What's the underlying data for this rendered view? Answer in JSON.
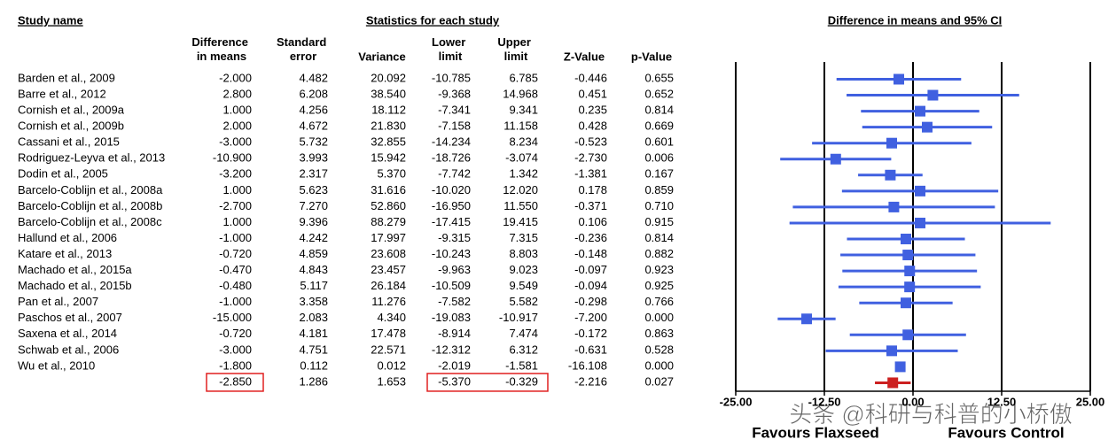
{
  "chart_data": {
    "type": "forest",
    "study_header": "Study name",
    "stats_header": "Statistics for each study",
    "title": "Difference in means and 95% CI",
    "categories": [
      "Barden et al., 2009",
      "Barre et al., 2012",
      "Cornish et al., 2009a",
      "Cornish et al., 2009b",
      "Cassani et al., 2015",
      "Rodriguez-Leyva et al., 2013",
      "Dodin et al., 2005",
      "Barcelo-Coblijn et al., 2008a",
      "Barcelo-Coblijn et al., 2008b",
      "Barcelo-Coblijn et al., 2008c",
      "Hallund et al., 2006",
      "Katare et al., 2013",
      "Machado et al., 2015a",
      "Machado et al., 2015b",
      "Pan et al., 2007",
      "Paschos et al., 2007",
      "Saxena et al., 2014",
      "Schwab et al., 2006",
      "Wu et al., 2010",
      null
    ],
    "columns": [
      {
        "name": "Difference in means",
        "values": [
          -2,
          2.8,
          1,
          2,
          -3,
          -10.9,
          -3.2,
          1,
          -2.7,
          1,
          -1,
          -0.72,
          -0.47,
          -0.48,
          -1,
          -15,
          -0.72,
          -3,
          -1.8,
          -2.85
        ],
        "value_labels": [
          "-2.000",
          "2.800",
          "1.000",
          "2.000",
          "-3.000",
          "-10.900",
          "-3.200",
          "1.000",
          "-2.700",
          "1.000",
          "-1.000",
          "-0.720",
          "-0.470",
          "-0.480",
          "-1.000",
          "-15.000",
          "-0.720",
          "-3.000",
          "-1.800",
          "-2.850"
        ]
      },
      {
        "name": "Standard error",
        "values": [
          4.482,
          6.208,
          4.256,
          4.672,
          5.732,
          3.993,
          2.317,
          5.623,
          7.27,
          9.396,
          4.242,
          4.859,
          4.843,
          5.117,
          3.358,
          2.083,
          4.181,
          4.751,
          0.112,
          1.286
        ],
        "value_labels": [
          "4.482",
          "6.208",
          "4.256",
          "4.672",
          "5.732",
          "3.993",
          "2.317",
          "5.623",
          "7.270",
          "9.396",
          "4.242",
          "4.859",
          "4.843",
          "5.117",
          "3.358",
          "2.083",
          "4.181",
          "4.751",
          "0.112",
          "1.286"
        ]
      },
      {
        "name": "Variance",
        "values": [
          20.092,
          38.54,
          18.112,
          21.83,
          32.855,
          15.942,
          5.37,
          31.616,
          52.86,
          88.279,
          17.997,
          23.608,
          23.457,
          26.184,
          11.276,
          4.34,
          17.478,
          22.571,
          0.012,
          1.653
        ],
        "value_labels": [
          "20.092",
          "38.540",
          "18.112",
          "21.830",
          "32.855",
          "15.942",
          "5.370",
          "31.616",
          "52.860",
          "88.279",
          "17.997",
          "23.608",
          "23.457",
          "26.184",
          "11.276",
          "4.340",
          "17.478",
          "22.571",
          "0.012",
          "1.653"
        ]
      },
      {
        "name": "Lower limit",
        "values": [
          -10.785,
          -9.368,
          -7.341,
          -7.158,
          -14.234,
          -18.726,
          -7.742,
          -10.02,
          -16.95,
          -17.415,
          -9.315,
          -10.243,
          -9.963,
          -10.509,
          -7.582,
          -19.083,
          -8.914,
          -12.312,
          -2.019,
          -5.37
        ],
        "value_labels": [
          "-10.785",
          "-9.368",
          "-7.341",
          "-7.158",
          "-14.234",
          "-18.726",
          "-7.742",
          "-10.020",
          "-16.950",
          "-17.415",
          "-9.315",
          "-10.243",
          "-9.963",
          "-10.509",
          "-7.582",
          "-19.083",
          "-8.914",
          "-12.312",
          "-2.019",
          "-5.370"
        ]
      },
      {
        "name": "Upper limit",
        "values": [
          6.785,
          14.968,
          9.341,
          11.158,
          8.234,
          -3.074,
          1.342,
          12.02,
          11.55,
          19.415,
          7.315,
          8.803,
          9.023,
          9.549,
          5.582,
          -10.917,
          7.474,
          6.312,
          -1.581,
          -0.329
        ],
        "value_labels": [
          "6.785",
          "14.968",
          "9.341",
          "11.158",
          "8.234",
          "-3.074",
          "1.342",
          "12.020",
          "11.550",
          "19.415",
          "7.315",
          "8.803",
          "9.023",
          "9.549",
          "5.582",
          "-10.917",
          "7.474",
          "6.312",
          "-1.581",
          "-0.329"
        ]
      },
      {
        "name": "Z-Value",
        "values": [
          -0.446,
          0.451,
          0.235,
          0.428,
          -0.523,
          -2.73,
          -1.381,
          0.178,
          -0.371,
          0.106,
          -0.236,
          -0.148,
          -0.097,
          -0.094,
          -0.298,
          -7.2,
          -0.172,
          -0.631,
          -16.108,
          -2.216
        ],
        "value_labels": [
          "-0.446",
          "0.451",
          "0.235",
          "0.428",
          "-0.523",
          "-2.730",
          "-1.381",
          "0.178",
          "-0.371",
          "0.106",
          "-0.236",
          "-0.148",
          "-0.097",
          "-0.094",
          "-0.298",
          "-7.200",
          "-0.172",
          "-0.631",
          "-16.108",
          "-2.216"
        ]
      },
      {
        "name": "p-Value",
        "values": [
          0.655,
          0.652,
          0.814,
          0.669,
          0.601,
          0.006,
          0.167,
          0.859,
          0.71,
          0.915,
          0.814,
          0.882,
          0.923,
          0.925,
          0.766,
          0,
          0.863,
          0.528,
          0,
          0.027
        ],
        "value_labels": [
          "0.655",
          "0.652",
          "0.814",
          "0.669",
          "0.601",
          "0.006",
          "0.167",
          "0.859",
          "0.710",
          "0.915",
          "0.814",
          "0.882",
          "0.923",
          "0.925",
          "0.766",
          "0.000",
          "0.863",
          "0.528",
          "0.000",
          "0.027"
        ]
      }
    ],
    "color": "#4060e0",
    "summary_color": "#cc2020",
    "xlim": [
      -25,
      25
    ],
    "xticks": [
      {
        "value": -25,
        "label": "-25.00"
      },
      {
        "value": -12.5,
        "label": "-12.50"
      },
      {
        "value": 0,
        "label": "0.00"
      },
      {
        "value": 12.5,
        "label": "12.50"
      },
      {
        "value": 25,
        "label": "25.00"
      }
    ],
    "xlabel_left": "Favours Flaxseed",
    "xlabel_right": "Favours Control",
    "watermark": "头条 @科研与科普的小桥傲"
  }
}
